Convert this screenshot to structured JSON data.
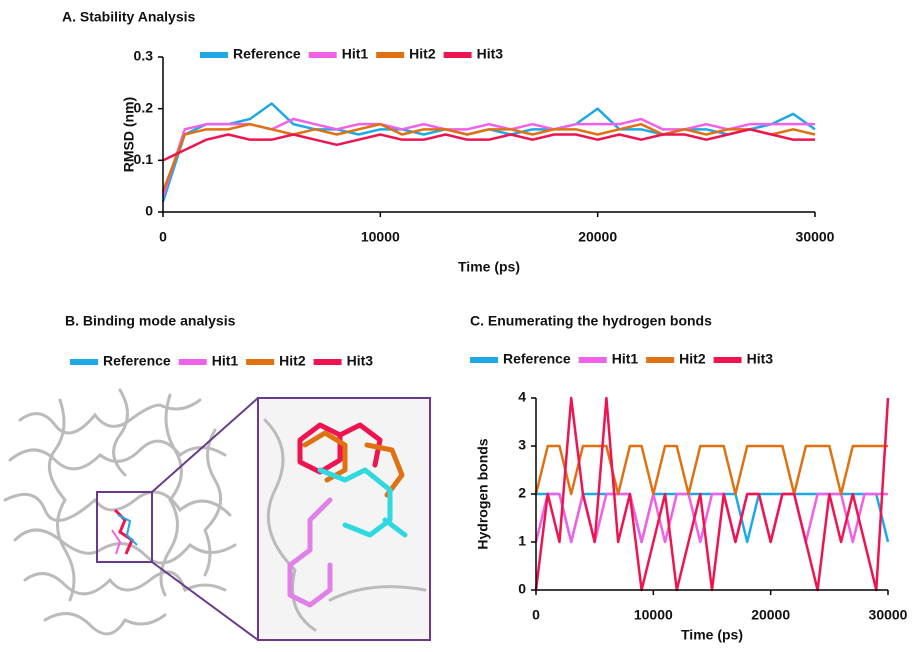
{
  "chart_data": [
    {
      "type": "line",
      "title": "A. Stability Analysis",
      "x_label": "Time (ps)",
      "y_label": "RMSD (nm)",
      "xlim": [
        0,
        30000
      ],
      "xticks": [
        0,
        10000,
        20000,
        30000
      ],
      "ylim": [
        0,
        0.3
      ],
      "yticks": [
        0,
        0.1,
        0.2,
        0.3
      ],
      "legend": "top",
      "x": [
        0,
        1000,
        2000,
        3000,
        4000,
        5000,
        6000,
        7000,
        8000,
        9000,
        10000,
        11000,
        12000,
        13000,
        14000,
        15000,
        16000,
        17000,
        18000,
        19000,
        20000,
        21000,
        22000,
        23000,
        24000,
        25000,
        26000,
        27000,
        28000,
        29000,
        30000
      ],
      "series": [
        {
          "name": "Reference",
          "color": "#1ca9e6",
          "values": [
            0.02,
            0.15,
            0.17,
            0.17,
            0.18,
            0.21,
            0.17,
            0.16,
            0.16,
            0.15,
            0.16,
            0.16,
            0.15,
            0.16,
            0.15,
            0.16,
            0.15,
            0.16,
            0.16,
            0.17,
            0.2,
            0.16,
            0.16,
            0.15,
            0.16,
            0.16,
            0.15,
            0.16,
            0.17,
            0.19,
            0.16
          ]
        },
        {
          "name": "Hit1",
          "color": "#f060e8",
          "values": [
            0.03,
            0.16,
            0.17,
            0.17,
            0.17,
            0.16,
            0.18,
            0.17,
            0.16,
            0.17,
            0.17,
            0.16,
            0.17,
            0.16,
            0.16,
            0.17,
            0.16,
            0.17,
            0.16,
            0.17,
            0.17,
            0.17,
            0.18,
            0.16,
            0.16,
            0.17,
            0.16,
            0.17,
            0.17,
            0.17,
            0.17
          ]
        },
        {
          "name": "Hit2",
          "color": "#e07010",
          "values": [
            0.04,
            0.15,
            0.16,
            0.16,
            0.17,
            0.16,
            0.15,
            0.16,
            0.15,
            0.16,
            0.17,
            0.15,
            0.16,
            0.16,
            0.15,
            0.16,
            0.16,
            0.15,
            0.16,
            0.16,
            0.15,
            0.16,
            0.17,
            0.15,
            0.16,
            0.15,
            0.16,
            0.16,
            0.15,
            0.16,
            0.15
          ]
        },
        {
          "name": "Hit3",
          "color": "#ee1450",
          "values": [
            0.1,
            0.12,
            0.14,
            0.15,
            0.14,
            0.14,
            0.15,
            0.14,
            0.13,
            0.14,
            0.15,
            0.14,
            0.14,
            0.15,
            0.14,
            0.14,
            0.15,
            0.14,
            0.15,
            0.15,
            0.14,
            0.15,
            0.14,
            0.15,
            0.15,
            0.14,
            0.15,
            0.16,
            0.15,
            0.14,
            0.14
          ]
        }
      ]
    },
    {
      "type": "line",
      "title": "C. Enumerating the hydrogen bonds",
      "x_label": "Time (ps)",
      "y_label": "Hydrogen bonds",
      "xlim": [
        0,
        30000
      ],
      "xticks": [
        0,
        10000,
        20000,
        30000
      ],
      "ylim": [
        0,
        4
      ],
      "yticks": [
        0,
        1,
        2,
        3,
        4
      ],
      "legend": "top",
      "x": [
        0,
        1000,
        2000,
        3000,
        4000,
        5000,
        6000,
        7000,
        8000,
        9000,
        10000,
        11000,
        12000,
        13000,
        14000,
        15000,
        16000,
        17000,
        18000,
        19000,
        20000,
        21000,
        22000,
        23000,
        24000,
        25000,
        26000,
        27000,
        28000,
        29000,
        30000
      ],
      "series": [
        {
          "name": "Reference",
          "color": "#1ca9e6",
          "values": [
            2,
            2,
            2,
            1,
            2,
            2,
            2,
            2,
            2,
            1,
            2,
            2,
            2,
            2,
            2,
            2,
            2,
            2,
            1,
            2,
            2,
            2,
            2,
            2,
            2,
            2,
            2,
            2,
            2,
            2,
            1
          ]
        },
        {
          "name": "Hit1",
          "color": "#f060e8",
          "values": [
            1,
            2,
            2,
            1,
            2,
            1,
            2,
            2,
            2,
            1,
            2,
            1,
            2,
            2,
            1,
            2,
            2,
            1,
            2,
            2,
            1,
            2,
            2,
            1,
            2,
            2,
            2,
            1,
            2,
            2,
            2
          ]
        },
        {
          "name": "Hit2",
          "color": "#e07010",
          "values": [
            2,
            3,
            3,
            2,
            3,
            3,
            3,
            2,
            3,
            3,
            2,
            3,
            3,
            2,
            3,
            3,
            3,
            2,
            3,
            3,
            3,
            3,
            2,
            3,
            3,
            3,
            2,
            3,
            3,
            3,
            3
          ]
        },
        {
          "name": "Hit3",
          "color": "#ee1450",
          "values": [
            0,
            2,
            1,
            4,
            2,
            1,
            4,
            1,
            2,
            0,
            1,
            2,
            0,
            1,
            2,
            0,
            2,
            1,
            2,
            2,
            1,
            2,
            2,
            1,
            0,
            2,
            1,
            2,
            1,
            0,
            4
          ]
        }
      ]
    },
    {
      "type": "image",
      "title": "B. Binding mode analysis",
      "series": [
        {
          "name": "Reference",
          "color": "#1ca9e6"
        },
        {
          "name": "Hit1",
          "color": "#f060e8"
        },
        {
          "name": "Hit2",
          "color": "#e07010"
        },
        {
          "name": "Hit3",
          "color": "#ee1450"
        }
      ]
    }
  ]
}
